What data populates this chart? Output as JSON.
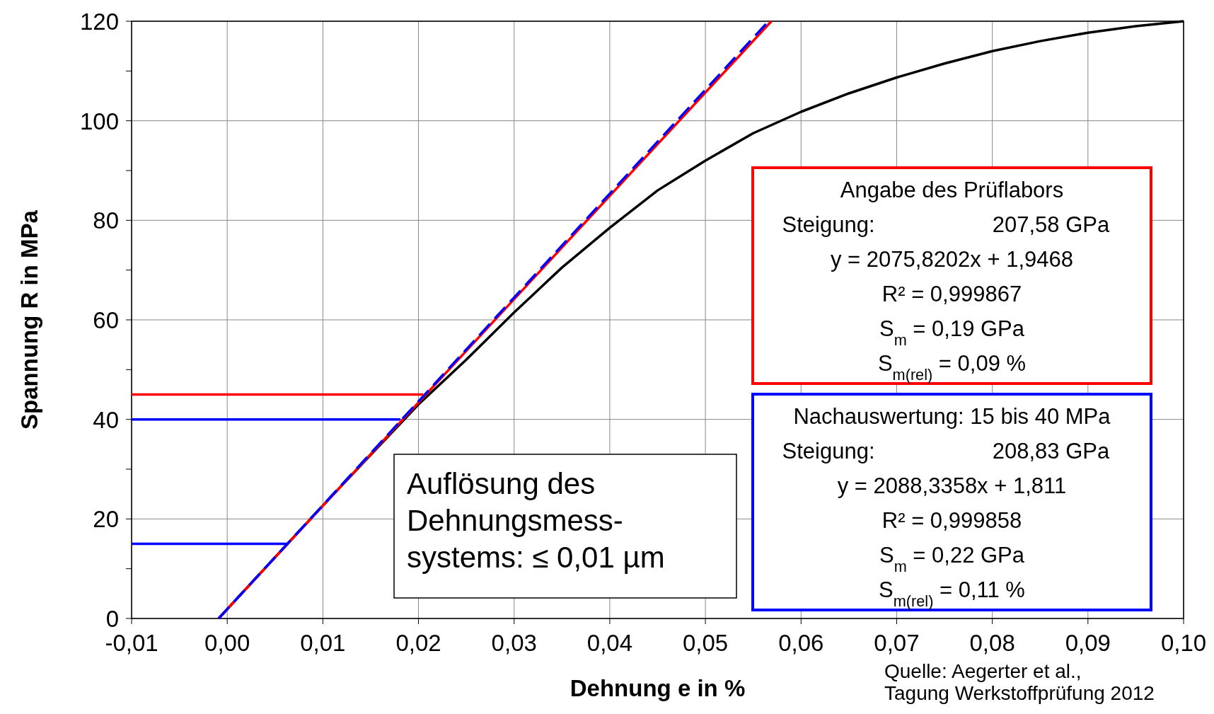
{
  "chart_data": {
    "type": "line",
    "xlabel": "Dehnung e in %",
    "ylabel": "Spannung R in MPa",
    "xlim": [
      -0.01,
      0.1
    ],
    "ylim": [
      0,
      120
    ],
    "xticks": [
      {
        "value": -0.01,
        "label": "-0,01"
      },
      {
        "value": 0,
        "label": "0,00"
      },
      {
        "value": 0.01,
        "label": "0,01"
      },
      {
        "value": 0.02,
        "label": "0,02"
      },
      {
        "value": 0.03,
        "label": "0,03"
      },
      {
        "value": 0.04,
        "label": "0,04"
      },
      {
        "value": 0.05,
        "label": "0,05"
      },
      {
        "value": 0.06,
        "label": "0,06"
      },
      {
        "value": 0.07,
        "label": "0,07"
      },
      {
        "value": 0.08,
        "label": "0,08"
      },
      {
        "value": 0.09,
        "label": "0,09"
      },
      {
        "value": 0.1,
        "label": "0,10"
      }
    ],
    "yticks": [
      0,
      {
        "value": 10,
        "label": null
      },
      20,
      {
        "value": 30,
        "label": null
      },
      40,
      {
        "value": 50,
        "label": null
      },
      60,
      {
        "value": 70,
        "label": null
      },
      80,
      {
        "value": 90,
        "label": null
      },
      100,
      {
        "value": 110,
        "label": null
      },
      120
    ],
    "grid": true,
    "series": [
      {
        "color": "#000000",
        "line_style": "solid",
        "x": [
          -0.0009,
          0.01,
          0.02,
          0.025,
          0.03,
          0.035,
          0.04,
          0.045,
          0.05,
          0.055,
          0.06,
          0.065,
          0.07,
          0.075,
          0.08,
          0.085,
          0.09,
          0.095,
          0.1
        ],
        "values": [
          0,
          22.7,
          43,
          52,
          61.5,
          70.5,
          78.5,
          86,
          92,
          97.5,
          101.8,
          105.5,
          108.7,
          111.5,
          114,
          116,
          117.7,
          119,
          120
        ]
      },
      {
        "color": "#ff0000",
        "line_style": "solid",
        "x": [
          -0.0009,
          0.0569
        ],
        "values": [
          0,
          120
        ]
      },
      {
        "color": "#0000ff",
        "line_style": "dashed",
        "x": [
          -0.0009,
          0.0566
        ],
        "values": [
          0,
          120
        ]
      },
      {
        "color": "#ff0000",
        "line_style": "solid",
        "x": [
          -0.01,
          0.0205
        ],
        "values": [
          45,
          45
        ]
      },
      {
        "color": "#0000ff",
        "line_style": "solid",
        "x": [
          -0.01,
          0.0181
        ],
        "values": [
          40,
          40
        ]
      },
      {
        "color": "#0000ff",
        "line_style": "solid",
        "x": [
          -0.01,
          0.0064
        ],
        "values": [
          15,
          15
        ]
      }
    ],
    "annotations": [
      "Auflösung des\nDehnungsmess-\nsystems: ≤ 0,01 µm",
      "Angabe des Prüflabors",
      "Steigung:\t207,58 GPa",
      "y = 2075,8202x + 1,9468",
      "R² = 0,999867",
      "S$_{m}$ = 0,19 GPa",
      "S$_{m(rel)}$ = 0,09 %",
      "Nachauswertung: 15 bis 40 MPa",
      "Steigung:\t208,83 GPa",
      "y = 2088,3358x + 1,811",
      "R² = 0,999858",
      "S$_{m}$ = 0,22 GPa",
      "S$_{m(rel)}$ = 0,11 %",
      "Quelle: Aegerter et al.,\nTagung Werkstoffprüfung 2012"
    ]
  }
}
